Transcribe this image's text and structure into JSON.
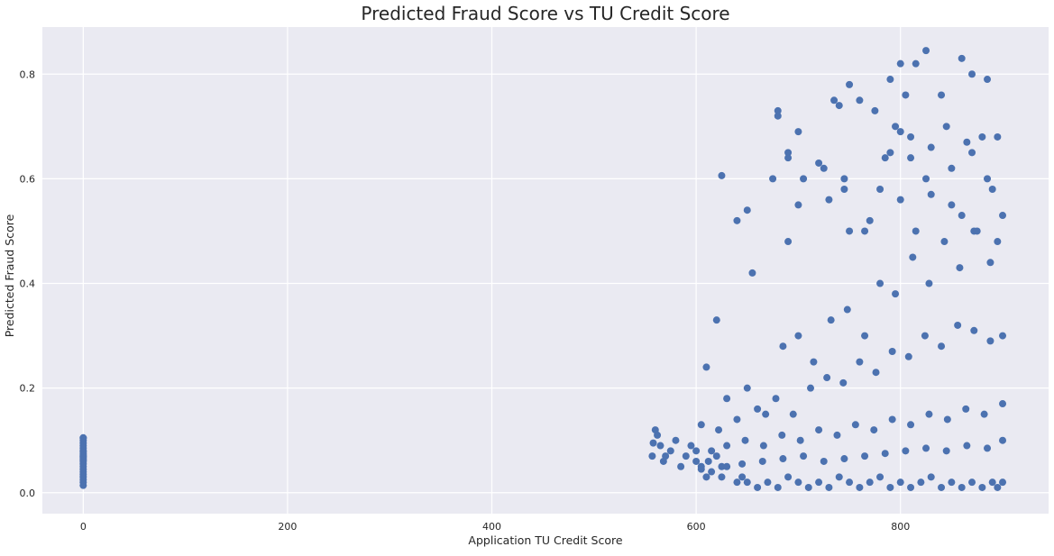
{
  "colors": {
    "plot_background": "#eaeaf2",
    "grid": "#ffffff",
    "point": "#4c72b0",
    "text": "#262626"
  },
  "chart_data": {
    "type": "scatter",
    "title": "Predicted Fraud Score vs TU Credit Score",
    "xlabel": "Application TU Credit Score",
    "ylabel": "Predicted Fraud Score",
    "xlim": [
      -40,
      945
    ],
    "ylim": [
      -0.04,
      0.89
    ],
    "xticks": [
      0,
      200,
      400,
      600,
      800
    ],
    "yticks": [
      0.0,
      0.2,
      0.4,
      0.6,
      0.8
    ],
    "xtick_labels": [
      "0",
      "200",
      "400",
      "600",
      "800"
    ],
    "ytick_labels": [
      "0.0",
      "0.2",
      "0.4",
      "0.6",
      "0.8"
    ],
    "grid": true,
    "series": [
      {
        "x": [
          0,
          0,
          0,
          0,
          0,
          0,
          0,
          0,
          0,
          0,
          0,
          0,
          0,
          0,
          0,
          0,
          0,
          0,
          0,
          0,
          0,
          0,
          0,
          0,
          557,
          560,
          558,
          562,
          565,
          570,
          568,
          575,
          580,
          585,
          590,
          595,
          600,
          605,
          610,
          612,
          615,
          620,
          625,
          630,
          640,
          645,
          650,
          660,
          670,
          680,
          690,
          700,
          710,
          720,
          730,
          740,
          750,
          760,
          770,
          780,
          790,
          800,
          810,
          820,
          830,
          840,
          850,
          860,
          870,
          880,
          890,
          895,
          900,
          625,
          650,
          680,
          700,
          720,
          735,
          750,
          760,
          775,
          790,
          800,
          805,
          815,
          825,
          840,
          860,
          870,
          885,
          620,
          640,
          655,
          675,
          690,
          705,
          725,
          745,
          765,
          785,
          795,
          810,
          830,
          845,
          865,
          880,
          895,
          610,
          630,
          650,
          668,
          685,
          700,
          715,
          732,
          748,
          765,
          780,
          795,
          812,
          828,
          843,
          858,
          872,
          888,
          900,
          605,
          622,
          640,
          660,
          678,
          695,
          712,
          728,
          744,
          760,
          776,
          792,
          808,
          824,
          840,
          856,
          872,
          888,
          900,
          600,
          615,
          630,
          648,
          666,
          684,
          702,
          720,
          738,
          756,
          774,
          792,
          810,
          828,
          846,
          864,
          882,
          900,
          605,
          625,
          645,
          665,
          685,
          705,
          725,
          745,
          765,
          785,
          805,
          825,
          845,
          865,
          885,
          900,
          680,
          690,
          740,
          745,
          790,
          800,
          810,
          825,
          850,
          870,
          885,
          890,
          690,
          700,
          730,
          750,
          770,
          780,
          800,
          815,
          830,
          850,
          860,
          875,
          895
        ],
        "y": [
          0.014,
          0.02,
          0.025,
          0.03,
          0.035,
          0.04,
          0.045,
          0.05,
          0.055,
          0.06,
          0.062,
          0.065,
          0.068,
          0.07,
          0.072,
          0.075,
          0.078,
          0.08,
          0.085,
          0.09,
          0.095,
          0.1,
          0.104,
          0.105,
          0.07,
          0.12,
          0.095,
          0.11,
          0.09,
          0.07,
          0.06,
          0.08,
          0.1,
          0.05,
          0.07,
          0.09,
          0.08,
          0.05,
          0.03,
          0.06,
          0.04,
          0.07,
          0.03,
          0.05,
          0.02,
          0.03,
          0.02,
          0.01,
          0.02,
          0.01,
          0.03,
          0.02,
          0.01,
          0.02,
          0.01,
          0.03,
          0.02,
          0.01,
          0.02,
          0.03,
          0.01,
          0.02,
          0.01,
          0.02,
          0.03,
          0.01,
          0.02,
          0.01,
          0.02,
          0.01,
          0.02,
          0.01,
          0.02,
          0.606,
          0.54,
          0.73,
          0.69,
          0.63,
          0.75,
          0.78,
          0.75,
          0.73,
          0.79,
          0.82,
          0.76,
          0.82,
          0.845,
          0.76,
          0.83,
          0.8,
          0.79,
          0.33,
          0.52,
          0.42,
          0.6,
          0.65,
          0.6,
          0.62,
          0.6,
          0.5,
          0.64,
          0.7,
          0.68,
          0.66,
          0.7,
          0.67,
          0.68,
          0.68,
          0.24,
          0.18,
          0.2,
          0.15,
          0.28,
          0.3,
          0.25,
          0.33,
          0.35,
          0.3,
          0.4,
          0.38,
          0.45,
          0.4,
          0.48,
          0.43,
          0.5,
          0.44,
          0.53,
          0.13,
          0.12,
          0.14,
          0.16,
          0.18,
          0.15,
          0.2,
          0.22,
          0.21,
          0.25,
          0.23,
          0.27,
          0.26,
          0.3,
          0.28,
          0.32,
          0.31,
          0.29,
          0.3,
          0.06,
          0.08,
          0.09,
          0.1,
          0.09,
          0.11,
          0.1,
          0.12,
          0.11,
          0.13,
          0.12,
          0.14,
          0.13,
          0.15,
          0.14,
          0.16,
          0.15,
          0.17,
          0.045,
          0.05,
          0.055,
          0.06,
          0.065,
          0.07,
          0.06,
          0.065,
          0.07,
          0.075,
          0.08,
          0.085,
          0.08,
          0.09,
          0.085,
          0.1,
          0.72,
          0.64,
          0.74,
          0.58,
          0.65,
          0.69,
          0.64,
          0.6,
          0.62,
          0.65,
          0.6,
          0.58,
          0.48,
          0.55,
          0.56,
          0.5,
          0.52,
          0.58,
          0.56,
          0.5,
          0.57,
          0.55,
          0.53,
          0.5,
          0.48
        ]
      }
    ]
  }
}
